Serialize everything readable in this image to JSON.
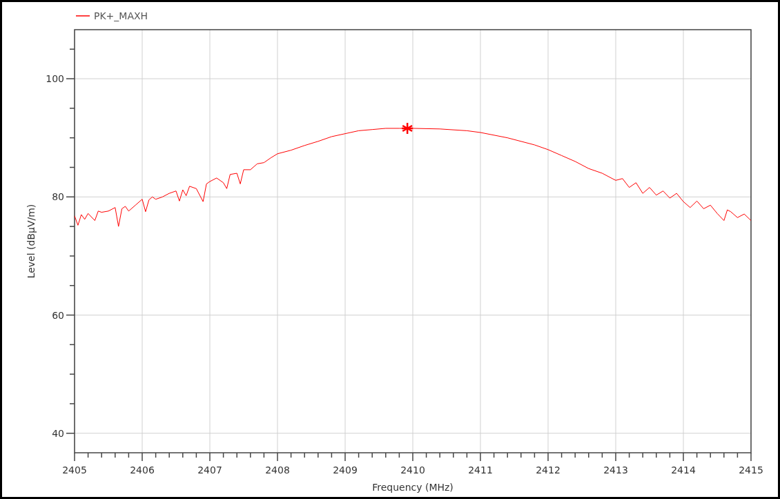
{
  "chart_data": {
    "type": "line",
    "xlabel": "Frequency (MHz)",
    "ylabel": "Level (dBµV/m)",
    "legend": "top left",
    "grid": true,
    "line_style": "solid",
    "marker": "none",
    "xlim": [
      2405,
      2415
    ],
    "ylim": [
      36.7,
      108.3
    ],
    "xticks": [
      2405,
      {
        "value": 2405.2,
        "label": null
      },
      {
        "value": 2405.4,
        "label": null
      },
      {
        "value": 2405.6,
        "label": null
      },
      {
        "value": 2405.8,
        "label": null
      },
      2406,
      {
        "value": 2406.2,
        "label": null
      },
      {
        "value": 2406.4,
        "label": null
      },
      {
        "value": 2406.6,
        "label": null
      },
      {
        "value": 2406.8,
        "label": null
      },
      2407,
      {
        "value": 2407.2,
        "label": null
      },
      {
        "value": 2407.4,
        "label": null
      },
      {
        "value": 2407.6,
        "label": null
      },
      {
        "value": 2407.8,
        "label": null
      },
      2408,
      {
        "value": 2408.2,
        "label": null
      },
      {
        "value": 2408.4,
        "label": null
      },
      {
        "value": 2408.6,
        "label": null
      },
      {
        "value": 2408.8,
        "label": null
      },
      2409,
      {
        "value": 2409.2,
        "label": null
      },
      {
        "value": 2409.4,
        "label": null
      },
      {
        "value": 2409.6,
        "label": null
      },
      {
        "value": 2409.8,
        "label": null
      },
      2410,
      {
        "value": 2410.2,
        "label": null
      },
      {
        "value": 2410.4,
        "label": null
      },
      {
        "value": 2410.6,
        "label": null
      },
      {
        "value": 2410.8,
        "label": null
      },
      2411,
      {
        "value": 2411.2,
        "label": null
      },
      {
        "value": 2411.4,
        "label": null
      },
      {
        "value": 2411.6,
        "label": null
      },
      {
        "value": 2411.8,
        "label": null
      },
      2412,
      {
        "value": 2412.2,
        "label": null
      },
      {
        "value": 2412.4,
        "label": null
      },
      {
        "value": 2412.6,
        "label": null
      },
      {
        "value": 2412.8,
        "label": null
      },
      2413,
      {
        "value": 2413.2,
        "label": null
      },
      {
        "value": 2413.4,
        "label": null
      },
      {
        "value": 2413.6,
        "label": null
      },
      {
        "value": 2413.8,
        "label": null
      },
      2414,
      {
        "value": 2414.2,
        "label": null
      },
      {
        "value": 2414.4,
        "label": null
      },
      {
        "value": 2414.6,
        "label": null
      },
      {
        "value": 2414.8,
        "label": null
      },
      2415
    ],
    "yticks": [
      40,
      {
        "value": 45,
        "label": null
      },
      {
        "value": 50,
        "label": null
      },
      {
        "value": 55,
        "label": null
      },
      60,
      {
        "value": 65,
        "label": null
      },
      {
        "value": 70,
        "label": null
      },
      {
        "value": 75,
        "label": null
      },
      80,
      {
        "value": 85,
        "label": null
      },
      {
        "value": 90,
        "label": null
      },
      {
        "value": 95,
        "label": null
      },
      100,
      {
        "value": 105,
        "label": null
      }
    ],
    "series": [
      {
        "name": "PK+_MAXH",
        "color": "#ff0000",
        "x": [
          2405,
          2405.05,
          2405.1,
          2405.15,
          2405.2,
          2405.3,
          2405.35,
          2405.4,
          2405.5,
          2405.6,
          2405.65,
          2405.7,
          2405.75,
          2405.8,
          2405.9,
          2406,
          2406.05,
          2406.1,
          2406.15,
          2406.2,
          2406.3,
          2406.4,
          2406.5,
          2406.55,
          2406.6,
          2406.65,
          2406.7,
          2406.8,
          2406.9,
          2406.95,
          2407,
          2407.1,
          2407.2,
          2407.25,
          2407.3,
          2407.4,
          2407.45,
          2407.5,
          2407.6,
          2407.7,
          2407.8,
          2407.9,
          2408,
          2408.2,
          2408.4,
          2408.6,
          2408.8,
          2409,
          2409.2,
          2409.4,
          2409.6,
          2409.8,
          2410,
          2410.4,
          2410.8,
          2411,
          2411.4,
          2411.8,
          2412,
          2412.2,
          2412.4,
          2412.6,
          2412.8,
          2413,
          2413.1,
          2413.2,
          2413.3,
          2413.4,
          2413.5,
          2413.6,
          2413.7,
          2413.8,
          2413.9,
          2414,
          2414.1,
          2414.2,
          2414.3,
          2414.4,
          2414.5,
          2414.6,
          2414.65,
          2414.7,
          2414.8,
          2414.9,
          2415
        ],
        "values": [
          76.8,
          75.2,
          77.0,
          76.2,
          77.2,
          76.0,
          77.6,
          77.4,
          77.6,
          78.2,
          75.0,
          78.0,
          78.4,
          77.6,
          78.6,
          79.6,
          77.5,
          79.5,
          80.0,
          79.6,
          80.0,
          80.6,
          81.0,
          79.3,
          81.2,
          80.2,
          81.8,
          81.4,
          79.2,
          82.2,
          82.6,
          83.2,
          82.4,
          81.4,
          83.8,
          84.0,
          82.2,
          84.6,
          84.6,
          85.6,
          85.8,
          86.6,
          87.3,
          87.9,
          88.7,
          89.4,
          90.2,
          90.7,
          91.2,
          91.4,
          91.6,
          91.6,
          91.6,
          91.5,
          91.2,
          90.9,
          90.0,
          88.8,
          88.0,
          87.0,
          86.0,
          84.8,
          84.0,
          82.8,
          83.1,
          81.6,
          82.4,
          80.6,
          81.6,
          80.3,
          81.0,
          79.8,
          80.6,
          79.2,
          78.2,
          79.3,
          78.0,
          78.6,
          77.2,
          76.0,
          77.8,
          77.5,
          76.5,
          77.1,
          76.0
        ]
      },
      {
        "type": "scatter",
        "marker": "cross",
        "color": "#ff0000",
        "x": [
          2409.92
        ],
        "values": [
          91.6
        ]
      }
    ]
  }
}
